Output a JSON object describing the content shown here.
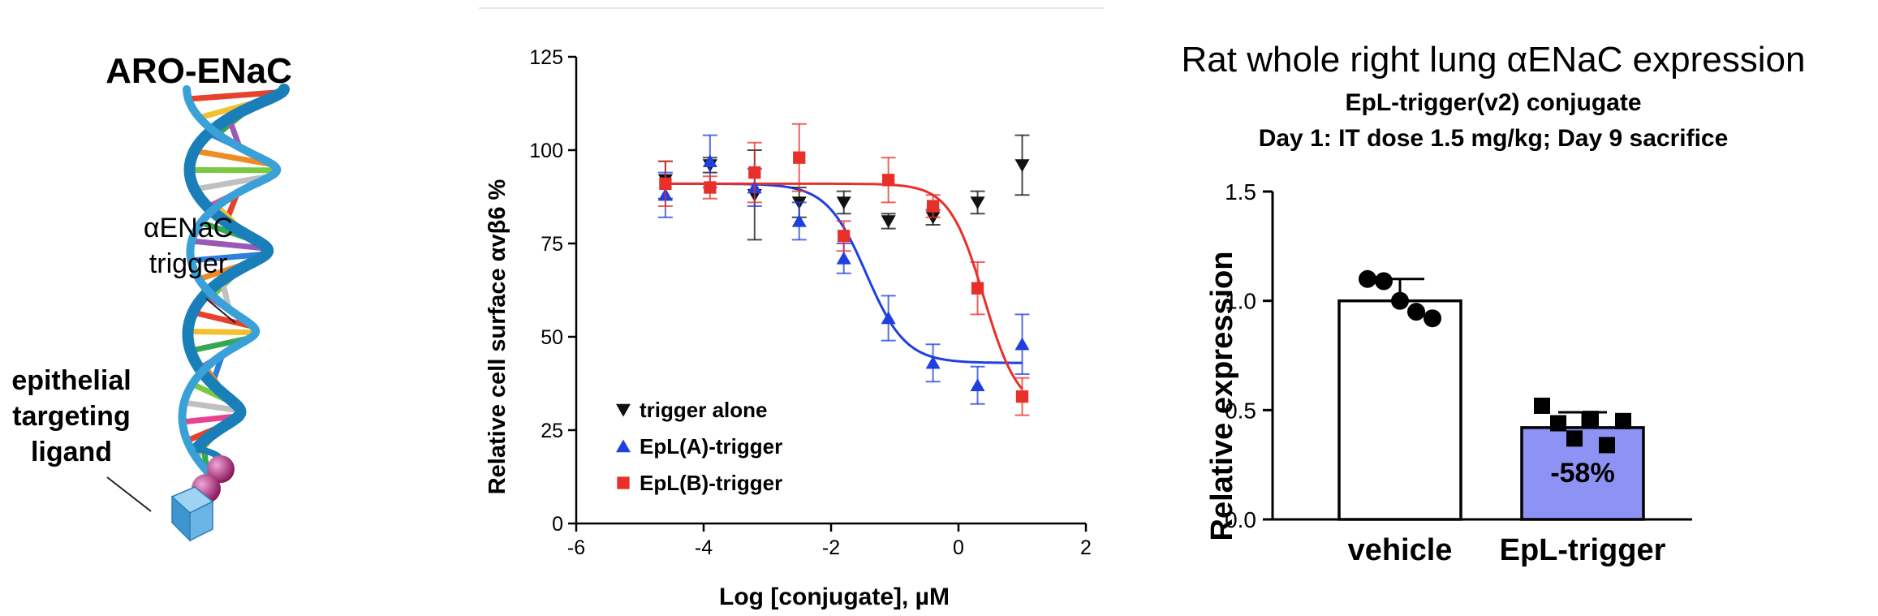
{
  "diagram": {
    "title": "ARO-ENaC",
    "label_trigger_line1": "αENaC",
    "label_trigger_line2": "trigger",
    "label_ligand_line1": "epithelial",
    "label_ligand_line2": "targeting",
    "label_ligand_line3": "ligand"
  },
  "colors": {
    "trigger_alone": "#111111",
    "epl_a": "#1f3fe0",
    "epl_b": "#e8302a",
    "helix": "#1a7fb8",
    "ligand_ball": "#b02a7a",
    "ligand_cube": "#5aaee0",
    "bar_treated": "#8f92f5"
  },
  "chart_data": [
    {
      "type": "scatter",
      "xlabel": "Log [conjugate], µM",
      "ylabel": "Relative cell surface αvβ6 %",
      "xlim": [
        -6,
        2
      ],
      "ylim": [
        0,
        125
      ],
      "xticks": [
        "-6",
        "-4",
        "-2",
        "0",
        "2"
      ],
      "yticks": [
        "0",
        "25",
        "50",
        "75",
        "100",
        "125"
      ],
      "legend_position": "bottom-left",
      "series": [
        {
          "name": "trigger alone",
          "marker": "triangle-down",
          "x": [
            -4.6,
            -3.9,
            -3.2,
            -2.5,
            -1.8,
            -1.1,
            -0.4,
            0.3,
            1.0
          ],
          "y": [
            92,
            96,
            88,
            86,
            86,
            81,
            82,
            86,
            96
          ],
          "err": [
            5,
            2,
            12,
            4,
            3,
            2,
            2,
            3,
            8
          ]
        },
        {
          "name": "EpL(A)-trigger",
          "marker": "triangle-up",
          "x": [
            -4.6,
            -3.9,
            -3.2,
            -2.5,
            -1.8,
            -1.1,
            -0.4,
            0.3,
            1.0
          ],
          "y": [
            88,
            97,
            90,
            81,
            71,
            55,
            43,
            37,
            48
          ],
          "err": [
            6,
            7,
            5,
            5,
            4,
            6,
            5,
            5,
            8
          ],
          "fit": {
            "top": 91,
            "bottom": 43,
            "logEC50": -1.45,
            "hill": 1.4
          }
        },
        {
          "name": "EpL(B)-trigger",
          "marker": "square",
          "x": [
            -4.6,
            -3.9,
            -3.2,
            -2.5,
            -1.8,
            -1.1,
            -0.4,
            0.3,
            1.0
          ],
          "y": [
            91,
            90,
            94,
            98,
            77,
            92,
            85,
            63,
            34
          ],
          "err": [
            6,
            3,
            8,
            9,
            4,
            6,
            3,
            7,
            5
          ],
          "fit": {
            "top": 91,
            "bottom": 30,
            "logEC50": 0.4,
            "hill": 1.6
          }
        }
      ]
    },
    {
      "type": "bar",
      "title": "Rat whole right lung αENaC expression",
      "subtitle_line1": "EpL-trigger(v2) conjugate",
      "subtitle_line2": "Day 1: IT dose 1.5 mg/kg; Day 9 sacrifice",
      "ylabel": "Relative expression",
      "ylim": [
        0,
        1.5
      ],
      "yticks": [
        "0.0",
        "0.5",
        "1.0",
        "1.5"
      ],
      "categories": [
        "vehicle",
        "EpL-trigger"
      ],
      "values": [
        1.0,
        0.42
      ],
      "errors": [
        0.1,
        0.07
      ],
      "bar_annotation": "-58%",
      "points": [
        [
          1.1,
          1.09,
          1.0,
          0.95,
          0.92
        ],
        [
          0.52,
          0.44,
          0.37,
          0.46,
          0.34,
          0.45
        ]
      ]
    }
  ]
}
